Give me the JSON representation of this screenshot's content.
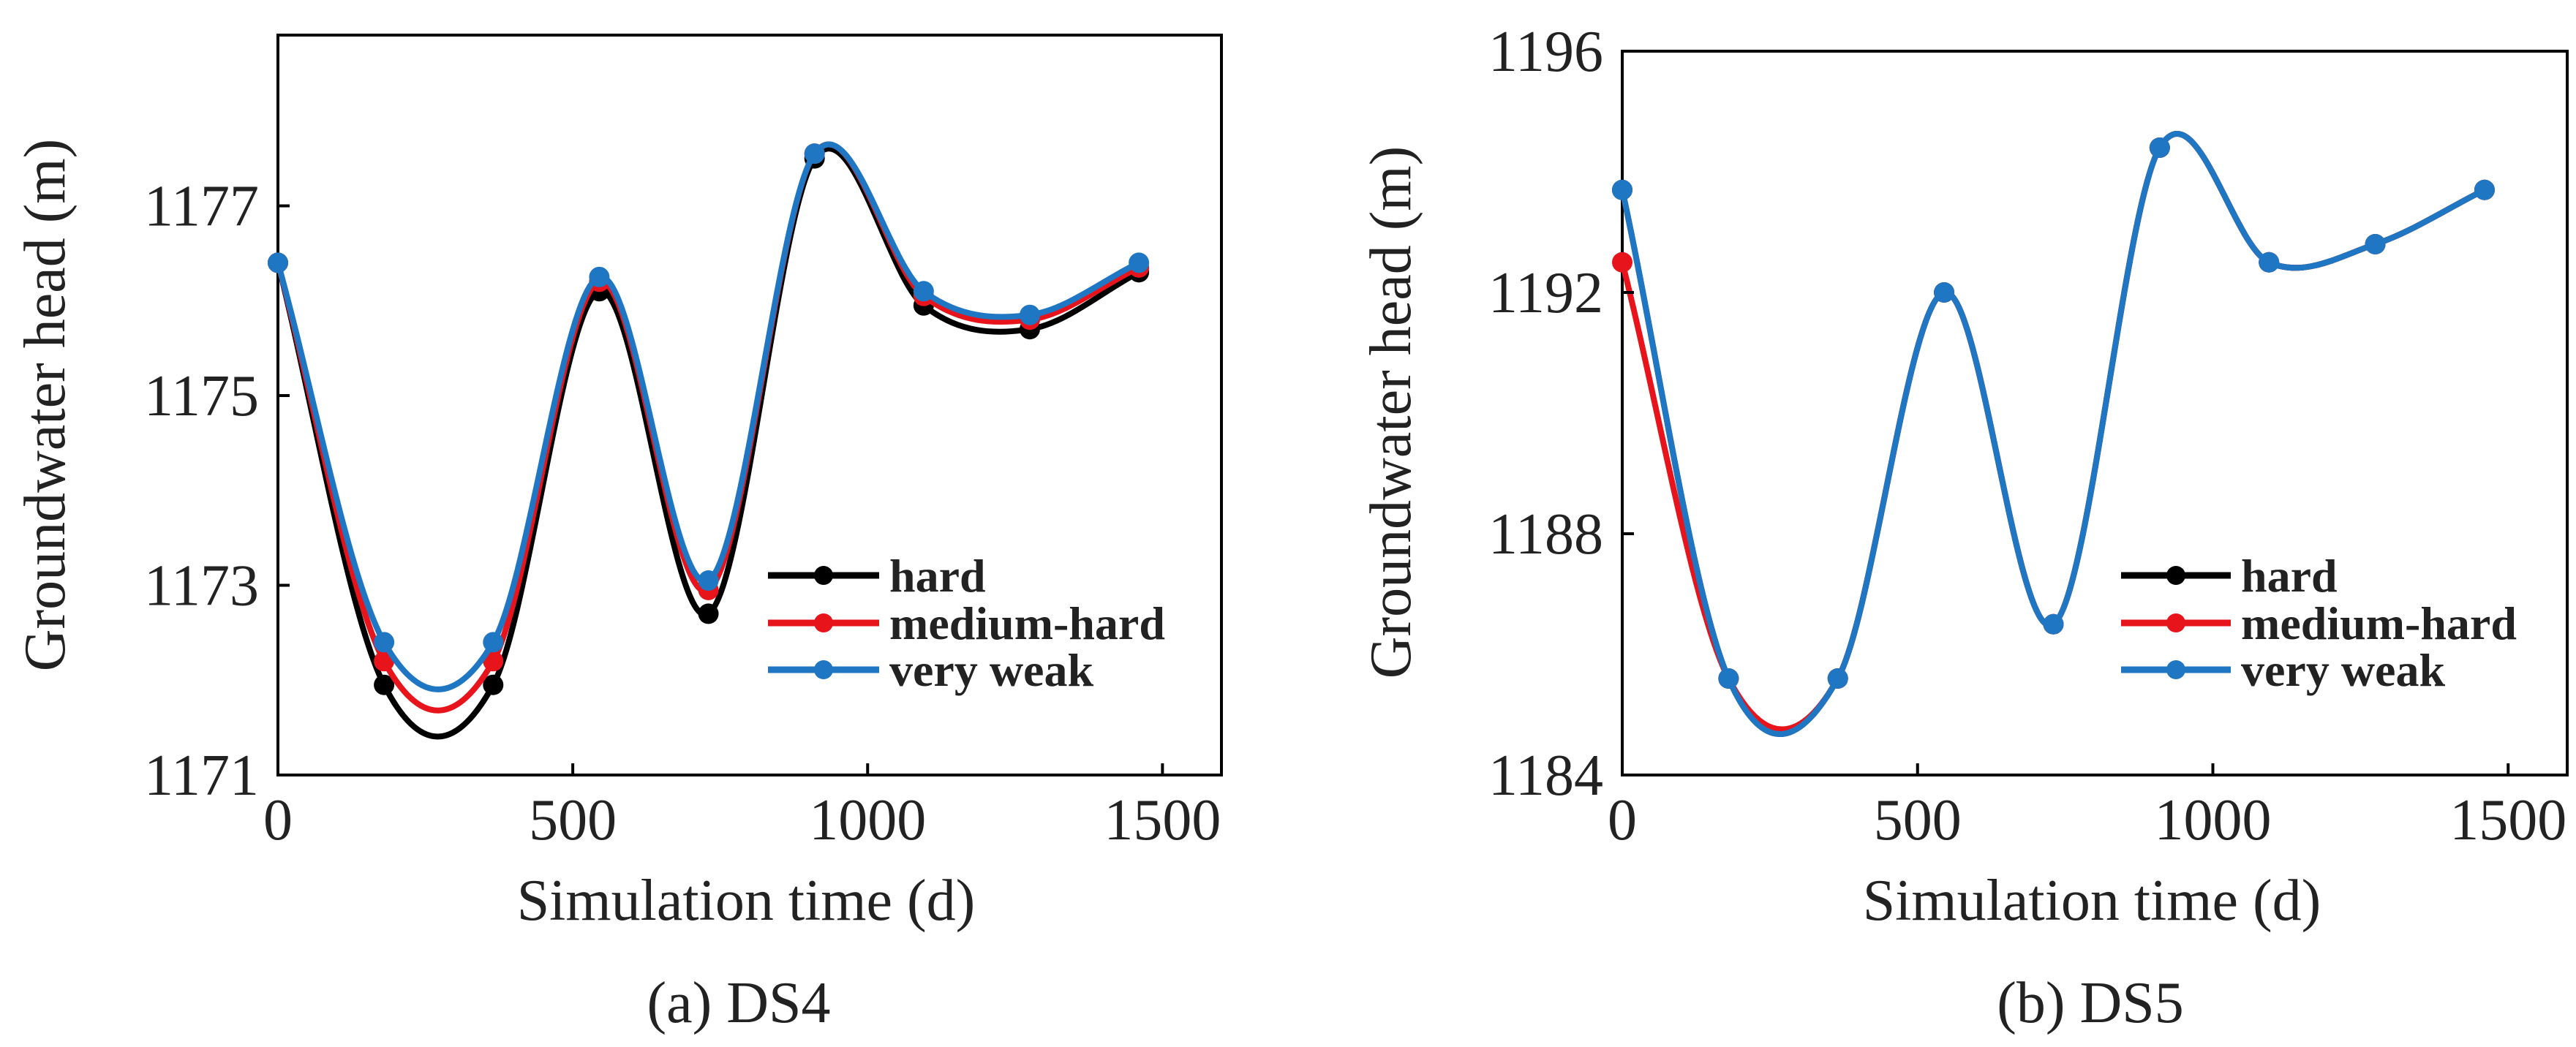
{
  "chart_data": [
    {
      "type": "line",
      "caption": "(a) DS4",
      "xlabel": "Simulation time (d)",
      "ylabel": "Groundwater head (m)",
      "xlim": [
        0,
        1600
      ],
      "ylim": [
        1171,
        1178.8
      ],
      "xticks": [
        0,
        500,
        1000,
        1500
      ],
      "xtick_labels": [
        "0",
        "500",
        "1000",
        "1500"
      ],
      "yticks": [
        1171,
        1173,
        1175,
        1177
      ],
      "ytick_labels": [
        "1171",
        "1173",
        "1175",
        "1177"
      ],
      "legend_position": "lower-right",
      "series": [
        {
          "name": "hard",
          "color": "#000000",
          "x": [
            0,
            180,
            365,
            545,
            730,
            910,
            1095,
            1275,
            1460
          ],
          "y": [
            1176.4,
            1171.95,
            1171.95,
            1176.1,
            1172.7,
            1177.5,
            1175.95,
            1175.7,
            1176.3
          ]
        },
        {
          "name": "medium-hard",
          "color": "#e8141c",
          "x": [
            0,
            180,
            365,
            545,
            730,
            910,
            1095,
            1275,
            1460
          ],
          "y": [
            1176.4,
            1172.2,
            1172.2,
            1176.2,
            1172.95,
            1177.55,
            1176.05,
            1175.8,
            1176.35
          ]
        },
        {
          "name": "very weak",
          "color": "#1f77c4",
          "x": [
            0,
            180,
            365,
            545,
            730,
            910,
            1095,
            1275,
            1460
          ],
          "y": [
            1176.4,
            1172.4,
            1172.4,
            1176.25,
            1173.05,
            1177.55,
            1176.1,
            1175.85,
            1176.4
          ]
        }
      ]
    },
    {
      "type": "line",
      "caption": "(b) DS5",
      "xlabel": "Simulation time (d)",
      "ylabel": "Groundwater head (m)",
      "xlim": [
        0,
        1600
      ],
      "ylim": [
        1184,
        1196
      ],
      "xticks": [
        0,
        500,
        1000,
        1500
      ],
      "xtick_labels": [
        "0",
        "500",
        "1000",
        "1500"
      ],
      "yticks": [
        1184,
        1188,
        1192,
        1196
      ],
      "ytick_labels": [
        "1184",
        "1188",
        "1192",
        "1196"
      ],
      "legend_position": "lower-right",
      "series": [
        {
          "name": "hard",
          "color": "#000000",
          "x": [
            0,
            180,
            365,
            545,
            730,
            910,
            1095,
            1275,
            1460
          ],
          "y": [
            1193.7,
            1185.6,
            1185.6,
            1192.0,
            1186.5,
            1194.4,
            1192.5,
            1192.8,
            1193.7
          ]
        },
        {
          "name": "medium-hard",
          "color": "#e8141c",
          "x": [
            0,
            180,
            365,
            545,
            730,
            910,
            1095,
            1275,
            1460
          ],
          "y": [
            1192.5,
            1185.6,
            1185.6,
            1192.0,
            1186.5,
            1194.4,
            1192.5,
            1192.8,
            1193.7
          ]
        },
        {
          "name": "very weak",
          "color": "#1f77c4",
          "x": [
            0,
            180,
            365,
            545,
            730,
            910,
            1095,
            1275,
            1460
          ],
          "y": [
            1193.7,
            1185.6,
            1185.6,
            1192.0,
            1186.5,
            1194.4,
            1192.5,
            1192.8,
            1193.7
          ]
        }
      ]
    }
  ]
}
